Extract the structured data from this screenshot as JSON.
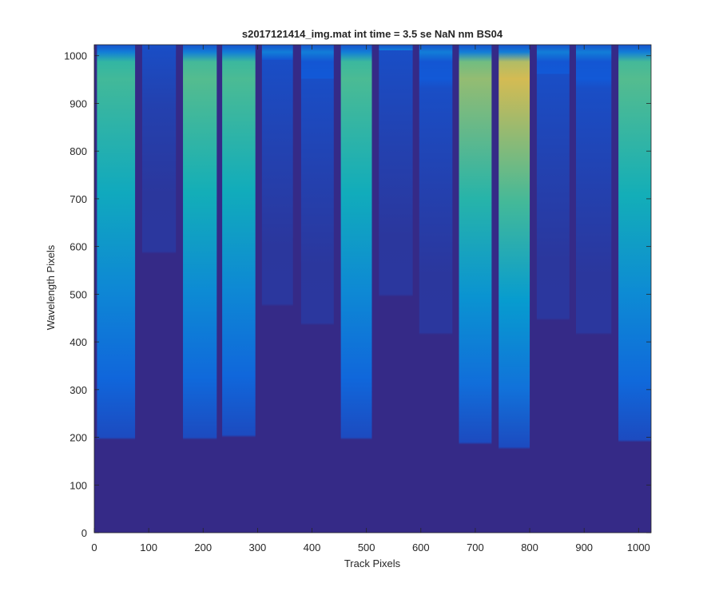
{
  "chart_data": {
    "type": "heatmap",
    "title": "s2017121414_img.mat int time = 3.5 se  NaN nm BS04",
    "xlabel": "Track Pixels",
    "ylabel": "Wavelength Pixels",
    "xlim": [
      0,
      1023
    ],
    "ylim": [
      0,
      1023
    ],
    "xticks": [
      0,
      100,
      200,
      300,
      400,
      500,
      600,
      700,
      800,
      900,
      1000
    ],
    "yticks": [
      0,
      100,
      200,
      300,
      400,
      500,
      600,
      700,
      800,
      900,
      1000
    ],
    "colormap": "parula",
    "grid": false,
    "legend": "none",
    "background_value_color": "#352a87",
    "tracks": [
      {
        "x_start": 5,
        "x_end": 75,
        "peak": 0.7,
        "threshold_y": 200
      },
      {
        "x_start": 88,
        "x_end": 150,
        "peak": 0.14,
        "threshold_y": 590
      },
      {
        "x_start": 163,
        "x_end": 225,
        "peak": 0.74,
        "threshold_y": 200
      },
      {
        "x_start": 235,
        "x_end": 296,
        "peak": 0.72,
        "threshold_y": 205
      },
      {
        "x_start": 308,
        "x_end": 365,
        "peak": 0.14,
        "threshold_y": 480
      },
      {
        "x_start": 380,
        "x_end": 440,
        "peak": 0.14,
        "threshold_y": 440
      },
      {
        "x_start": 453,
        "x_end": 510,
        "peak": 0.72,
        "threshold_y": 200
      },
      {
        "x_start": 523,
        "x_end": 585,
        "peak": 0.14,
        "threshold_y": 500
      },
      {
        "x_start": 597,
        "x_end": 658,
        "peak": 0.14,
        "threshold_y": 420
      },
      {
        "x_start": 670,
        "x_end": 730,
        "peak": 0.82,
        "threshold_y": 190
      },
      {
        "x_start": 743,
        "x_end": 800,
        "peak": 0.9,
        "threshold_y": 180
      },
      {
        "x_start": 813,
        "x_end": 873,
        "peak": 0.14,
        "threshold_y": 450
      },
      {
        "x_start": 885,
        "x_end": 950,
        "peak": 0.14,
        "threshold_y": 420
      },
      {
        "x_start": 963,
        "x_end": 1023,
        "peak": 0.74,
        "threshold_y": 195
      }
    ]
  }
}
